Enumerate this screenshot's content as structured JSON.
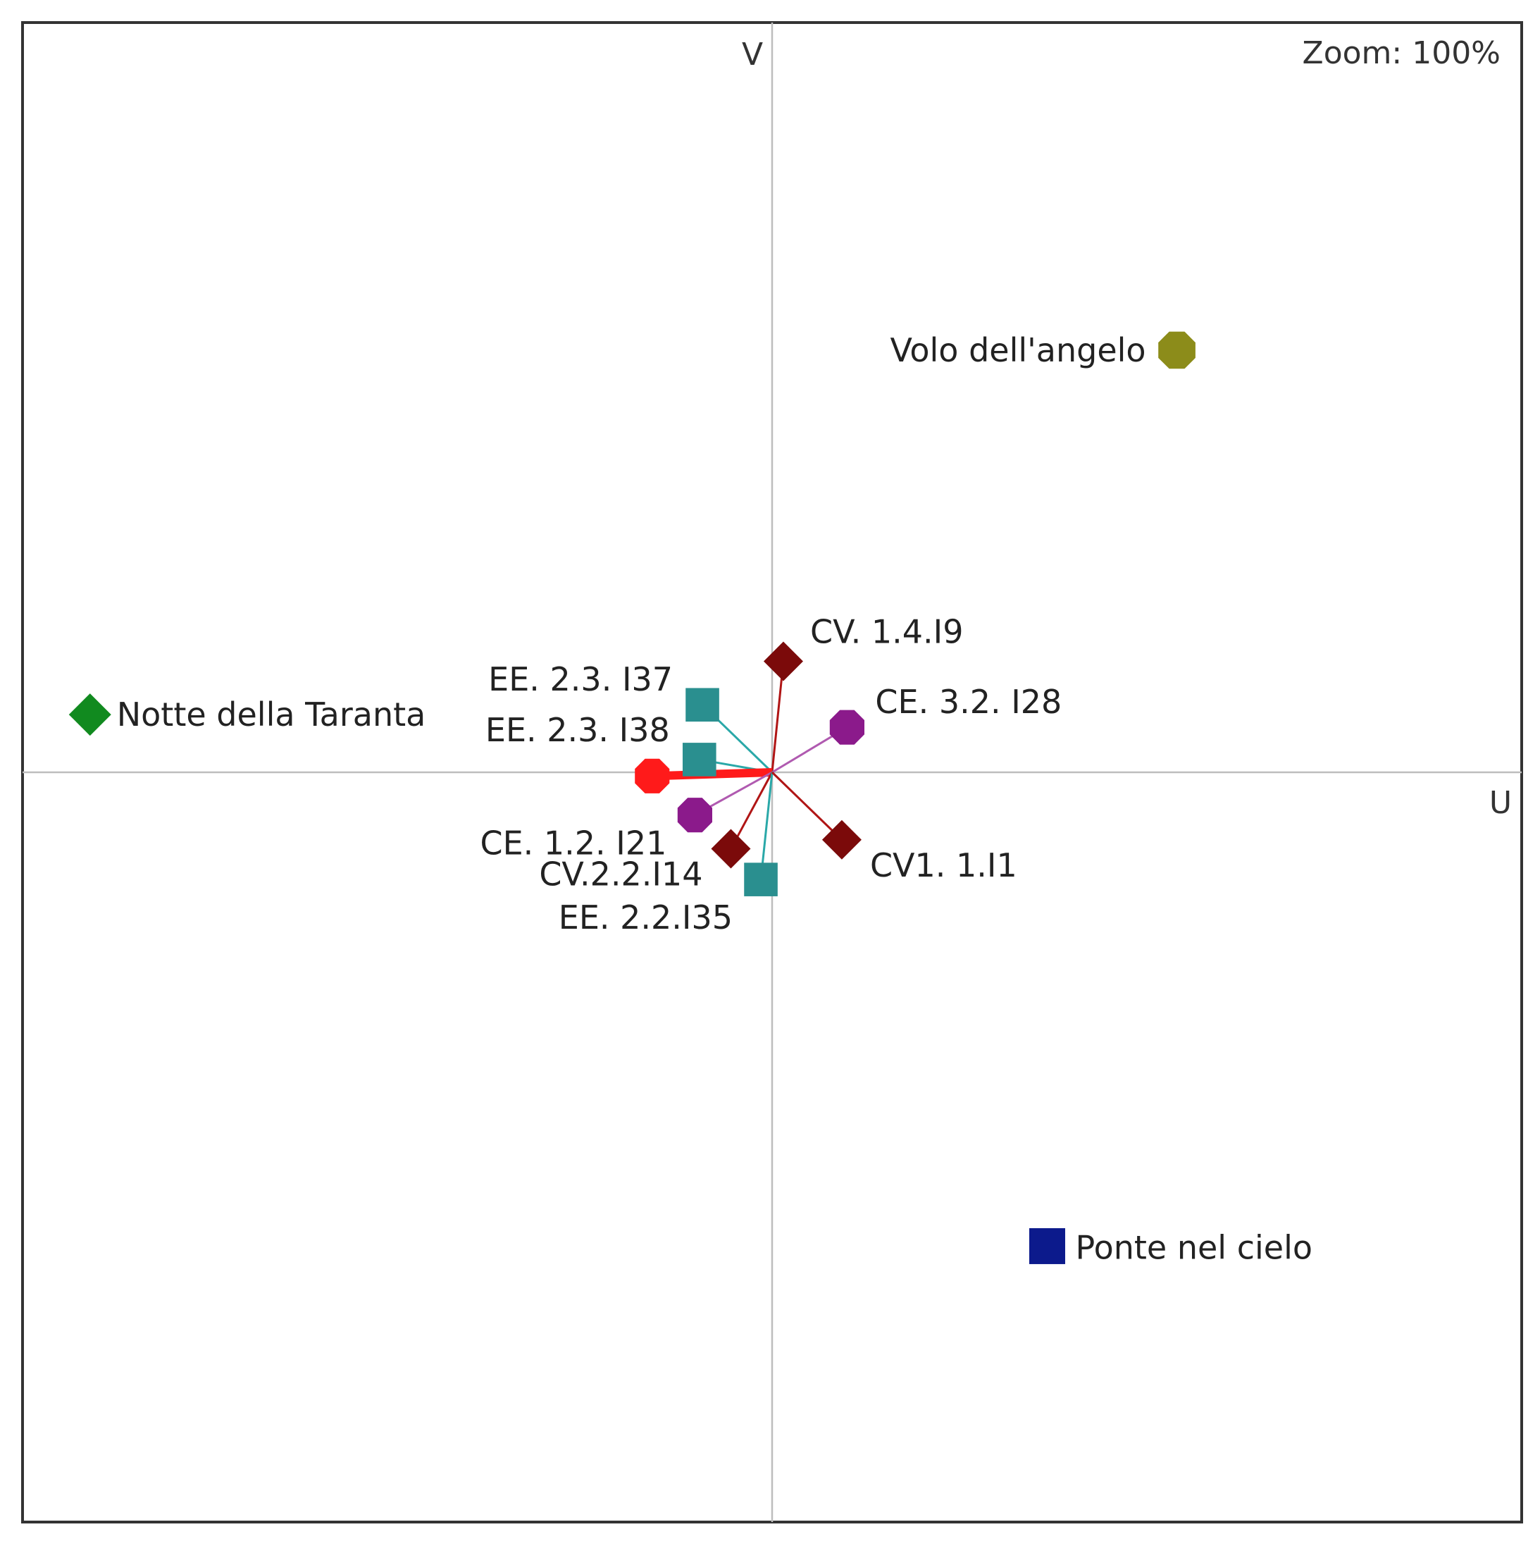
{
  "zoom": {
    "label": "Zoom: 100%"
  },
  "chart_data": {
    "type": "scatter",
    "title": "",
    "xlabel": "U",
    "ylabel": "V",
    "grid": false,
    "xlim": [
      -1,
      1
    ],
    "ylim": [
      -1,
      1
    ],
    "colors": {
      "dark_red": "#7b0a0a",
      "purple": "#8b1a8b",
      "teal": "#2a8f8f",
      "red": "#ff1a1a",
      "green": "#118a1f",
      "olive": "#8c8c1a",
      "navy": "#0c1a8c"
    },
    "center": {
      "x": 0.0,
      "y": 0.0
    },
    "vectors": [
      {
        "label": "CV. 1.4.I9",
        "x": 0.015,
        "y": 0.148,
        "shape": "diamond",
        "color": "#7b0a0a",
        "line": "#b01515"
      },
      {
        "label": "CE. 3.2. I28",
        "x": 0.1,
        "y": 0.06,
        "shape": "octagon",
        "color": "#8b1a8b",
        "line": "#b05ab0"
      },
      {
        "label": "EE. 2.3. I37",
        "x": -0.093,
        "y": 0.09,
        "shape": "square",
        "color": "#2a8f8f",
        "line": "#2aa8a8"
      },
      {
        "label": "EE. 2.3. I38",
        "x": -0.097,
        "y": 0.017,
        "shape": "square",
        "color": "#2a8f8f",
        "line": "#2aa8a8"
      },
      {
        "label": "",
        "x": -0.16,
        "y": -0.005,
        "shape": "octagon",
        "color": "#ff1a1a",
        "line": "#ff1a1a"
      },
      {
        "label": "CE. 1.2. I21",
        "x": -0.103,
        "y": -0.057,
        "shape": "octagon",
        "color": "#8b1a8b",
        "line": "#b05ab0"
      },
      {
        "label": "CV.2.2.I14",
        "x": -0.055,
        "y": -0.102,
        "shape": "diamond",
        "color": "#7b0a0a",
        "line": "#b01515"
      },
      {
        "label": "EE. 2.2.I35",
        "x": -0.015,
        "y": -0.143,
        "shape": "square",
        "color": "#2a8f8f",
        "line": "#2aa8a8"
      },
      {
        "label": "CV1. 1.I1",
        "x": 0.093,
        "y": -0.09,
        "shape": "diamond",
        "color": "#7b0a0a",
        "line": "#b01515"
      }
    ],
    "points": [
      {
        "label": "Notte della Taranta",
        "x": -0.91,
        "y": 0.077,
        "shape": "diamond",
        "color": "#118a1f"
      },
      {
        "label": "Volo dell'angelo",
        "x": 0.54,
        "y": 0.563,
        "shape": "octagon",
        "color": "#8c8c1a"
      },
      {
        "label": "Ponte nel cielo",
        "x": 0.367,
        "y": -0.632,
        "shape": "square",
        "color": "#0c1a8c"
      }
    ]
  }
}
